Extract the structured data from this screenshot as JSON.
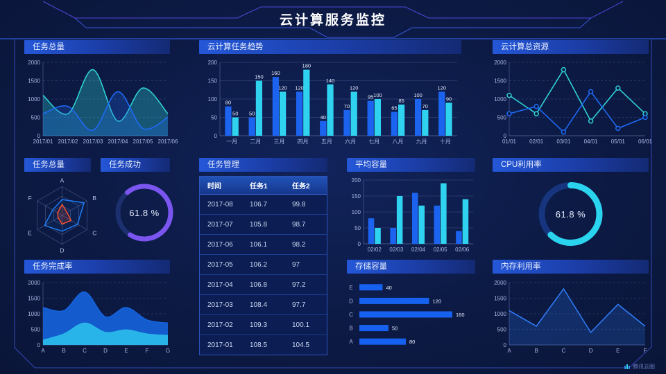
{
  "header": {
    "title": "云计算服务监控"
  },
  "watermark": {
    "label": "腾讯云图"
  },
  "colors": {
    "background": "#0c1a44",
    "accent_blue": "#1c64f0",
    "accent_cyan": "#2fd3f0",
    "accent_purple": "#7a55f0",
    "accent_red": "#f4502e",
    "frame": "#3448b6"
  },
  "table": {
    "title": "任务管理",
    "columns": [
      "时间",
      "任务1",
      "任务2"
    ],
    "rows": [
      [
        "2017-08",
        "106.7",
        "99.8"
      ],
      [
        "2017-07",
        "105.8",
        "98.7"
      ],
      [
        "2017-06",
        "106.1",
        "98.2"
      ],
      [
        "2017-05",
        "106.2",
        "97"
      ],
      [
        "2017-04",
        "106.8",
        "97.2"
      ],
      [
        "2017-03",
        "108.4",
        "97.7"
      ],
      [
        "2017-02",
        "109.3",
        "100.1"
      ],
      [
        "2017-01",
        "108.5",
        "104.5"
      ]
    ]
  },
  "chart_data": [
    {
      "type": "area",
      "title": "任务总量",
      "categories": [
        "2017/01",
        "2017/02",
        "2017/03",
        "2017/04",
        "2017/05",
        "2017/06"
      ],
      "ylim": [
        0,
        2000
      ],
      "yticks": [
        0,
        500,
        1000,
        1500,
        2000
      ],
      "grid": "dash",
      "series": [
        {
          "name": "series-cyan",
          "color": "#2fd0d4",
          "values": [
            1100,
            600,
            1800,
            400,
            1300,
            600
          ],
          "smooth": true,
          "fill": 0.32
        },
        {
          "name": "series-blue",
          "color": "#1e6af5",
          "values": [
            600,
            800,
            150,
            1200,
            200,
            500
          ],
          "smooth": true,
          "fill": 0.25
        }
      ]
    },
    {
      "type": "bar",
      "title": "云计算任务趋势",
      "categories": [
        "一月",
        "二月",
        "三月",
        "四月",
        "五月",
        "六月",
        "七月",
        "八月",
        "九月",
        "十月"
      ],
      "ylim": [
        0,
        200
      ],
      "yticks": [
        0,
        50,
        100,
        150,
        200
      ],
      "grid": "solid",
      "show_values": true,
      "series": [
        {
          "name": "任务1",
          "color": "#1c64f0",
          "values": [
            80,
            50,
            160,
            120,
            40,
            70,
            95,
            65,
            100,
            120
          ]
        },
        {
          "name": "任务2",
          "color": "#2fd3f0",
          "values": [
            50,
            150,
            120,
            180,
            140,
            120,
            100,
            85,
            70,
            90
          ]
        }
      ]
    },
    {
      "type": "line",
      "title": "云计算总资源",
      "categories": [
        "01/01",
        "02/01",
        "03/01",
        "04/01",
        "05/01",
        "06/01"
      ],
      "ylim": [
        0,
        2000
      ],
      "yticks": [
        0,
        500,
        1000,
        1500,
        2000
      ],
      "grid": "dash",
      "series": [
        {
          "name": "series-cyan",
          "color": "#2fd0d4",
          "values": [
            1100,
            600,
            1800,
            400,
            1300,
            600
          ],
          "markers": true
        },
        {
          "name": "series-blue",
          "color": "#1e6af5",
          "values": [
            600,
            800,
            100,
            1200,
            200,
            500
          ],
          "markers": true
        }
      ]
    },
    {
      "type": "radar",
      "title": "任务总量",
      "categories": [
        "A",
        "B",
        "C",
        "D",
        "E",
        "F"
      ],
      "max": 100,
      "series": [
        {
          "name": "series-blue",
          "color": "#1e7cf5",
          "values": [
            55,
            88,
            62,
            55,
            70,
            38
          ],
          "fill": 0.07
        },
        {
          "name": "series-red",
          "color": "#f4502e",
          "values": [
            38,
            20,
            36,
            30,
            16,
            18
          ],
          "fill": 0.18
        }
      ]
    },
    {
      "type": "donut",
      "title": "任务成功",
      "percent": 61.8,
      "value_label": "61.8 %",
      "arc_fraction": 0.7,
      "start_angle": -130,
      "color": "#7a55f0",
      "track": "#1c2f6e",
      "thickness": 7,
      "inset": 10
    },
    {
      "type": "bar",
      "title": "平均容量",
      "categories": [
        "02/02",
        "02/03",
        "02/04",
        "02/05",
        "02/06"
      ],
      "ylim": [
        0,
        200
      ],
      "yticks": [
        0,
        50,
        100,
        150,
        200
      ],
      "grid": "solid",
      "show_values": false,
      "series": [
        {
          "name": "series-blue",
          "color": "#1c64f0",
          "values": [
            80,
            50,
            160,
            120,
            40
          ]
        },
        {
          "name": "series-cyan",
          "color": "#2fd3f0",
          "values": [
            50,
            150,
            120,
            190,
            140
          ]
        }
      ]
    },
    {
      "type": "donut",
      "title": "CPU利用率",
      "percent": 61.8,
      "value_label": "61.8 %",
      "arc_fraction": 0.62,
      "start_angle": -90,
      "color": "#2bd4ee",
      "track": "#16357e",
      "thickness": 9,
      "inset": 16
    },
    {
      "type": "area",
      "title": "任务完成率",
      "categories": [
        "A",
        "B",
        "C",
        "D",
        "E",
        "F",
        "G"
      ],
      "ylim": [
        0,
        2000
      ],
      "yticks": [
        0,
        500,
        1000,
        1500,
        2000
      ],
      "grid": "dash",
      "series": [
        {
          "name": "series-blue",
          "color": "#1563dd",
          "values": [
            1200,
            1100,
            1700,
            900,
            1200,
            800,
            700
          ],
          "smooth": true,
          "fill": 0.9
        },
        {
          "name": "series-cyan",
          "color": "#29b8ea",
          "values": [
            150,
            350,
            700,
            400,
            480,
            350,
            300
          ],
          "smooth": true,
          "fill": 0.95
        }
      ]
    },
    {
      "type": "hbar",
      "title": "存储容量",
      "categories": [
        "E",
        "D",
        "C",
        "B",
        "A"
      ],
      "values": [
        40,
        120,
        160,
        50,
        80
      ],
      "color": "#1761f0",
      "show_values": true
    },
    {
      "type": "line",
      "title": "内存利用率",
      "categories": [
        "A",
        "B",
        "C",
        "D",
        "E",
        "F"
      ],
      "ylim": [
        0,
        2000
      ],
      "yticks": [
        0,
        500,
        1000,
        1500,
        2000
      ],
      "grid": "dash",
      "series": [
        {
          "name": "series-blue",
          "color": "#2e7af5",
          "values": [
            1100,
            600,
            1800,
            400,
            1300,
            600
          ],
          "fill": 0.22
        }
      ]
    }
  ]
}
